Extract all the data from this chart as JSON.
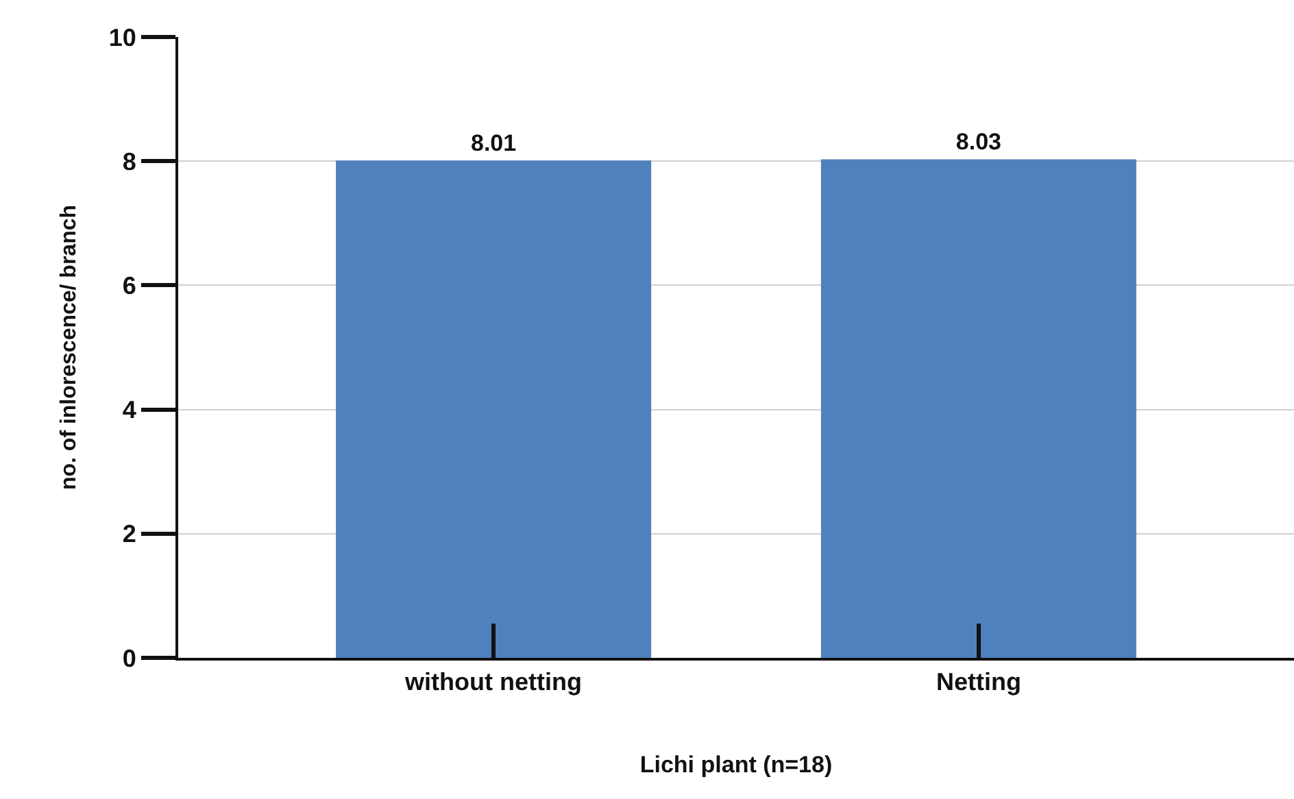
{
  "chart_data": {
    "type": "bar",
    "xlabel": "Lichi plant (n=18)",
    "ylabel": "no. of inlorescence/ branch",
    "categories": [
      "without netting",
      "Netting"
    ],
    "values": [
      8.01,
      8.03
    ],
    "color": "#4f81bd",
    "ylim": [
      0,
      10
    ],
    "yticks": [
      0,
      2,
      4,
      6,
      8,
      10
    ],
    "grid": "y",
    "data_labels": true
  }
}
